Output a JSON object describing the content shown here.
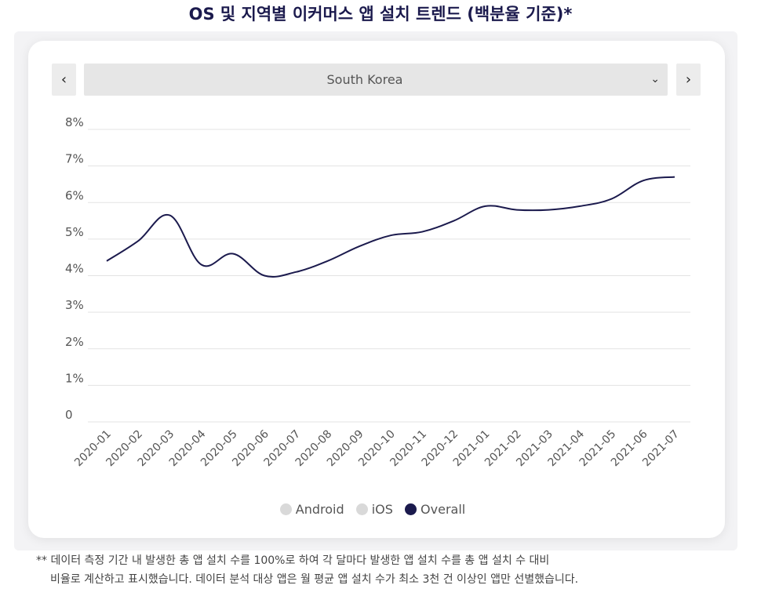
{
  "title": "OS 및 지역별 이커머스 앱 설치 트렌드 (백분율 기준)*",
  "selector": {
    "prev_label": "‹",
    "next_label": "›",
    "value": "South Korea",
    "caret": "⌄"
  },
  "legend": [
    {
      "label": "Android",
      "color": "#d9d9d9"
    },
    {
      "label": "iOS",
      "color": "#d9d9d9"
    },
    {
      "label": "Overall",
      "color": "#1b1a4d"
    }
  ],
  "footnote": {
    "line1": "** 데이터 측정 기간 내 발생한 총 앱 설치 수를 100%로 하여 각 달마다 발생한 앱 설치 수를 총 앱 설치 수 대비",
    "line2": "비율로 계산하고 표시했습니다. 데이터 분석 대상 앱은 월 평균 앱 설치 수가 최소 3천 건 이상인 앱만 선별했습니다."
  },
  "chart_data": {
    "type": "line",
    "title": "OS 및 지역별 이커머스 앱 설치 트렌드 (백분율 기준)*",
    "xlabel": "",
    "ylabel": "",
    "ylim": [
      0,
      8
    ],
    "y_ticks": [
      {
        "value": 8,
        "label": "8%"
      },
      {
        "value": 7,
        "label": "7%"
      },
      {
        "value": 6,
        "label": "6%"
      },
      {
        "value": 5,
        "label": "5%"
      },
      {
        "value": 4,
        "label": "4%"
      },
      {
        "value": 3,
        "label": "3%"
      },
      {
        "value": 2,
        "label": "2%"
      },
      {
        "value": 1,
        "label": "1%"
      },
      {
        "value": 0,
        "label": "0"
      }
    ],
    "categories": [
      "2020-01",
      "2020-02",
      "2020-03",
      "2020-04",
      "2020-05",
      "2020-06",
      "2020-07",
      "2020-08",
      "2020-09",
      "2020-10",
      "2020-11",
      "2020-12",
      "2021-01",
      "2021-02",
      "2021-03",
      "2021-04",
      "2021-05",
      "2021-06",
      "2021-07"
    ],
    "series": [
      {
        "name": "Overall",
        "color": "#1b1a4d",
        "values": [
          4.4,
          4.95,
          5.65,
          4.3,
          4.6,
          4.0,
          4.1,
          4.4,
          4.8,
          5.1,
          5.2,
          5.5,
          5.9,
          5.8,
          5.8,
          5.9,
          6.1,
          6.6,
          6.7
        ]
      }
    ],
    "legend_position": "bottom",
    "grid": true
  }
}
